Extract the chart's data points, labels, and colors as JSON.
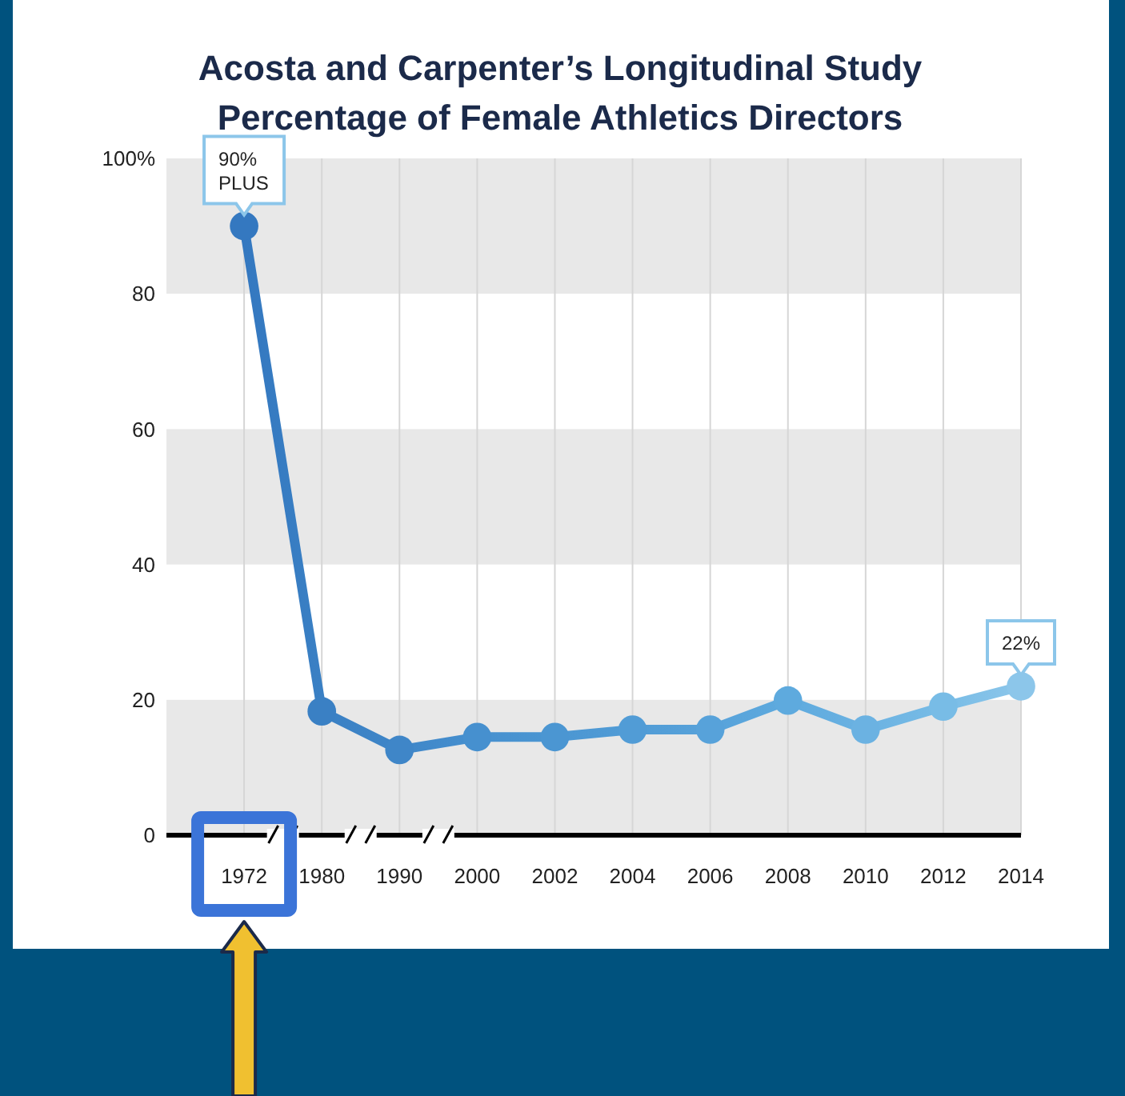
{
  "chart_data": {
    "type": "line",
    "title": "Acosta and Carpenter’s Longitudinal Study\nPercentage of Female Athletics Directors",
    "categories": [
      "1972",
      "1980",
      "1990",
      "2000",
      "2002",
      "2004",
      "2006",
      "2008",
      "2010",
      "2012",
      "2014"
    ],
    "series": [
      {
        "colors": [
          "#3478c0",
          "#3a80c4",
          "#3f86c8",
          "#4690cf",
          "#4b96d2",
          "#519cd6",
          "#57a2da",
          "#5eaade",
          "#6bb2e2",
          "#78bce6",
          "#8cc6ea"
        ],
        "values": [
          90,
          18.3,
          12.6,
          14.5,
          14.5,
          15.6,
          15.6,
          19.9,
          15.6,
          19,
          22
        ]
      }
    ],
    "ylim": [
      0,
      100
    ],
    "yticks": [
      0,
      20,
      40,
      60,
      80,
      {
        "value": 100,
        "label": "100%"
      }
    ],
    "grid": true,
    "marker": "circle",
    "line_style": "solid",
    "annotations": [
      {
        "text": "90%\nPLUS",
        "x": "1972",
        "y": 90
      },
      {
        "text": "22%",
        "x": "2014",
        "y": 22
      }
    ]
  }
}
